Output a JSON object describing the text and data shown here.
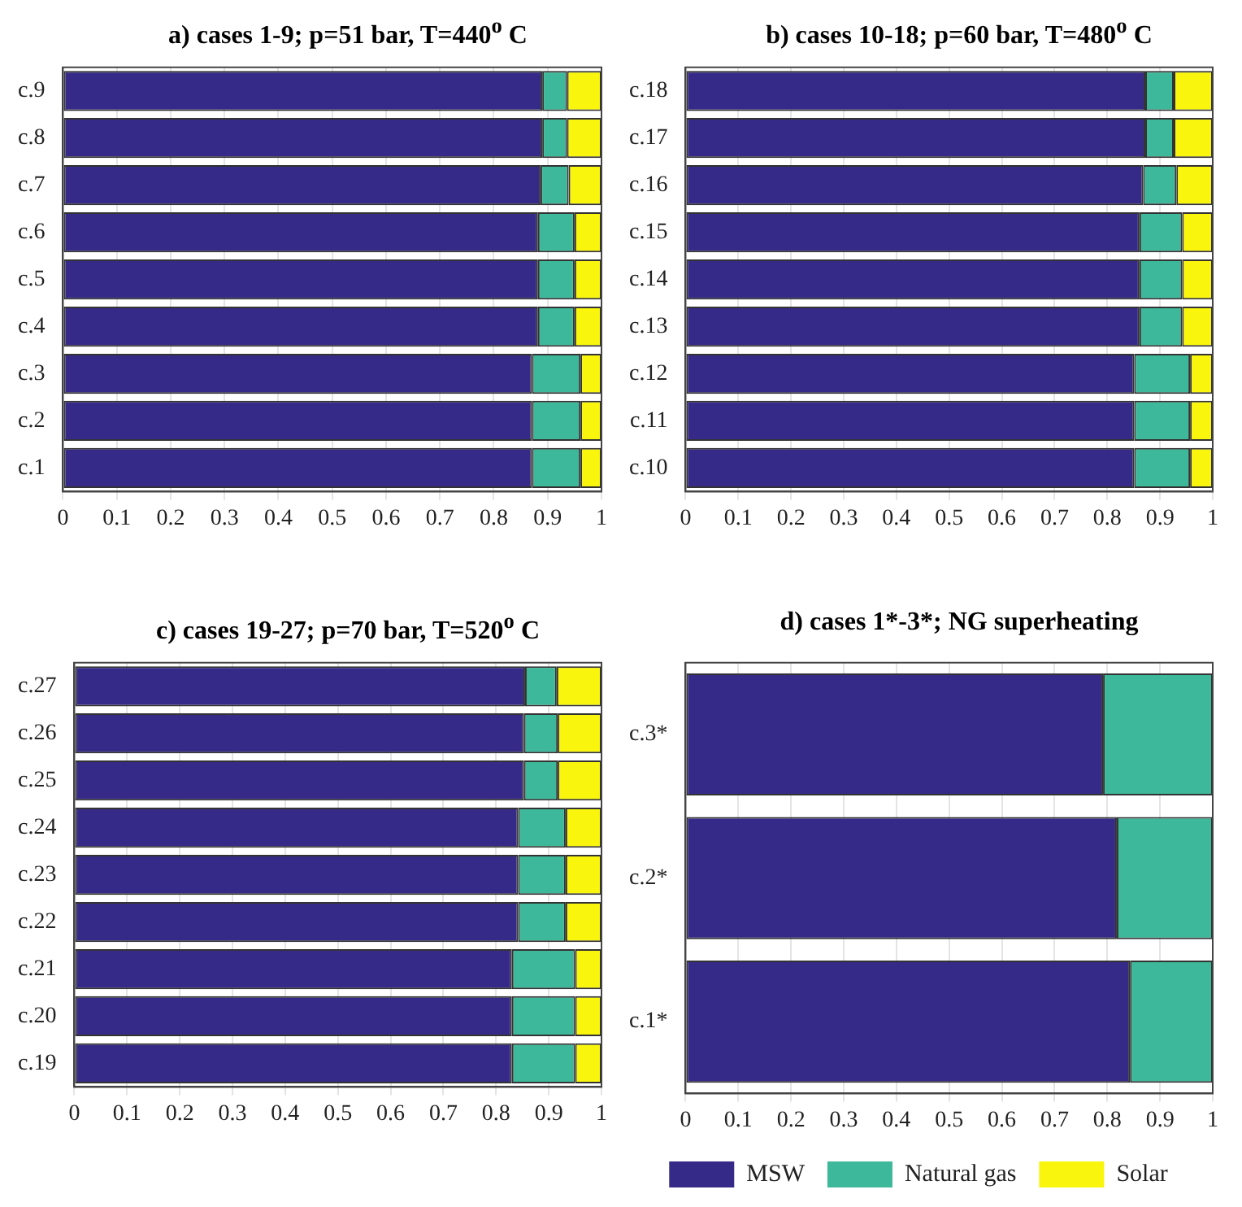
{
  "chart_data": [
    {
      "type": "bar",
      "orientation": "horizontal",
      "stacked": true,
      "title": "a) cases 1-9; p=51 bar, T=440$^{o}$ C",
      "categories": [
        "c.9",
        "c.8",
        "c.7",
        "c.6",
        "c.5",
        "c.4",
        "c.3",
        "c.2",
        "c.1"
      ],
      "xlim": [
        0,
        1
      ],
      "xticks": [
        0,
        0.1,
        0.2,
        0.3,
        0.4,
        0.5,
        0.6,
        0.7,
        0.8,
        0.9,
        1
      ],
      "grid": "x",
      "series": [
        {
          "color": "#352a87",
          "values": [
            0.89,
            0.89,
            0.887,
            0.882,
            0.882,
            0.882,
            0.871,
            0.871,
            0.871
          ]
        },
        {
          "color": "#3db89a",
          "values": [
            0.046,
            0.046,
            0.052,
            0.068,
            0.068,
            0.068,
            0.09,
            0.09,
            0.09
          ]
        },
        {
          "color": "#f9f50c",
          "values": [
            0.064,
            0.064,
            0.061,
            0.05,
            0.05,
            0.05,
            0.039,
            0.039,
            0.039
          ]
        }
      ]
    },
    {
      "type": "bar",
      "orientation": "horizontal",
      "stacked": true,
      "title": "b) cases 10-18; p=60 bar, T=480$^{o}$ C",
      "categories": [
        "c.18",
        "c.17",
        "c.16",
        "c.15",
        "c.14",
        "c.13",
        "c.12",
        "c.11",
        "c.10"
      ],
      "xlim": [
        0,
        1
      ],
      "xticks": [
        0,
        0.1,
        0.2,
        0.3,
        0.4,
        0.5,
        0.6,
        0.7,
        0.8,
        0.9,
        1
      ],
      "grid": "x",
      "series": [
        {
          "color": "#352a87",
          "values": [
            0.872,
            0.872,
            0.868,
            0.861,
            0.861,
            0.861,
            0.851,
            0.851,
            0.851
          ]
        },
        {
          "color": "#3db89a",
          "values": [
            0.054,
            0.054,
            0.063,
            0.081,
            0.081,
            0.081,
            0.106,
            0.106,
            0.106
          ]
        },
        {
          "color": "#f9f50c",
          "values": [
            0.074,
            0.074,
            0.069,
            0.058,
            0.058,
            0.058,
            0.043,
            0.043,
            0.043
          ]
        }
      ]
    },
    {
      "type": "bar",
      "orientation": "horizontal",
      "stacked": true,
      "title": "c) cases 19-27; p=70 bar, T=520$^{o}$ C",
      "categories": [
        "c.27",
        "c.26",
        "c.25",
        "c.24",
        "c.23",
        "c.22",
        "c.21",
        "c.20",
        "c.19"
      ],
      "xlim": [
        0,
        1
      ],
      "xticks": [
        0,
        0.1,
        0.2,
        0.3,
        0.4,
        0.5,
        0.6,
        0.7,
        0.8,
        0.9,
        1
      ],
      "grid": "x",
      "series": [
        {
          "color": "#352a87",
          "values": [
            0.855,
            0.853,
            0.853,
            0.842,
            0.842,
            0.842,
            0.83,
            0.83,
            0.83
          ]
        },
        {
          "color": "#3db89a",
          "values": [
            0.06,
            0.064,
            0.064,
            0.09,
            0.09,
            0.09,
            0.12,
            0.12,
            0.12
          ]
        },
        {
          "color": "#f9f50c",
          "values": [
            0.085,
            0.083,
            0.083,
            0.068,
            0.068,
            0.068,
            0.05,
            0.05,
            0.05
          ]
        }
      ]
    },
    {
      "type": "bar",
      "orientation": "horizontal",
      "stacked": true,
      "title": "d) cases 1*-3*; NG superheating",
      "categories": [
        "c.3*",
        "c.2*",
        "c.1*"
      ],
      "xlim": [
        0,
        1
      ],
      "xticks": [
        0,
        0.1,
        0.2,
        0.3,
        0.4,
        0.5,
        0.6,
        0.7,
        0.8,
        0.9,
        1
      ],
      "grid": "x",
      "legend": "bottom",
      "series": [
        {
          "name": "MSW",
          "color": "#352a87",
          "values": [
            0.792,
            0.818,
            0.843
          ]
        },
        {
          "name": "Natural gas",
          "color": "#3db89a",
          "values": [
            0.208,
            0.182,
            0.157
          ]
        },
        {
          "name": "Solar",
          "color": "#f9f50c",
          "values": [
            0,
            0,
            0
          ]
        }
      ]
    }
  ]
}
